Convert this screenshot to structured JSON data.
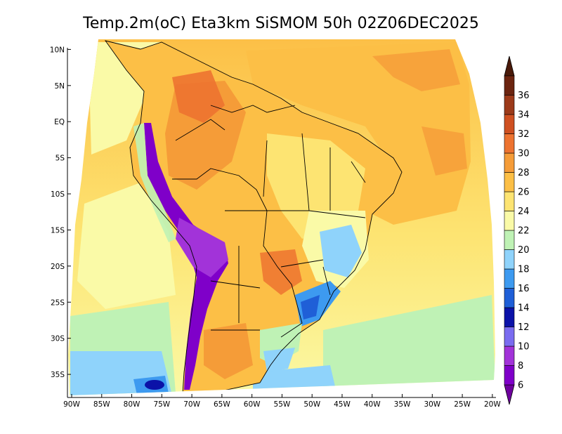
{
  "title": "Temp.2m(oC) Eta3km SiSMOM 50h 02Z06DEC2025",
  "chart_data": {
    "type": "heatmap",
    "title": "Temp.2m(oC) Eta3km SiSMOM 50h 02Z06DEC2025",
    "variable": "2 m air temperature",
    "units": "oC",
    "x_ticks": [
      "90W",
      "85W",
      "80W",
      "75W",
      "70W",
      "65W",
      "60W",
      "55W",
      "50W",
      "45W",
      "40W",
      "35W",
      "30W",
      "25W",
      "20W"
    ],
    "x_tick_values": [
      -90,
      -85,
      -80,
      -75,
      -70,
      -65,
      -60,
      -55,
      -50,
      -45,
      -40,
      -35,
      -30,
      -25,
      -20
    ],
    "y_ticks": [
      "10N",
      "5N",
      "EQ",
      "5S",
      "10S",
      "15S",
      "20S",
      "25S",
      "30S",
      "35S"
    ],
    "y_tick_values": [
      10,
      5,
      0,
      -5,
      -10,
      -15,
      -20,
      -25,
      -30,
      -35
    ],
    "xlim": [
      -90.7,
      -19.4
    ],
    "ylim": [
      -38.2,
      11.4
    ],
    "colorbar": {
      "labels": [
        "6",
        "8",
        "10",
        "12",
        "14",
        "16",
        "18",
        "20",
        "22",
        "24",
        "26",
        "28",
        "30",
        "32",
        "34",
        "36"
      ],
      "levels": [
        6,
        8,
        10,
        12,
        14,
        16,
        18,
        20,
        22,
        24,
        26,
        28,
        30,
        32,
        34,
        36
      ],
      "colors": [
        "#7f00c9",
        "#a233d9",
        "#7a6cf0",
        "#0b12a8",
        "#1f5fd7",
        "#3d9af0",
        "#8fd3fb",
        "#bff2b5",
        "#fafaa7",
        "#fde472",
        "#fcbf46",
        "#f59c38",
        "#ed7330",
        "#cf5021",
        "#9c3a1a",
        "#6b2410"
      ],
      "low_extend_color": "#6e009e",
      "high_extend_color": "#4a1a0a"
    }
  }
}
